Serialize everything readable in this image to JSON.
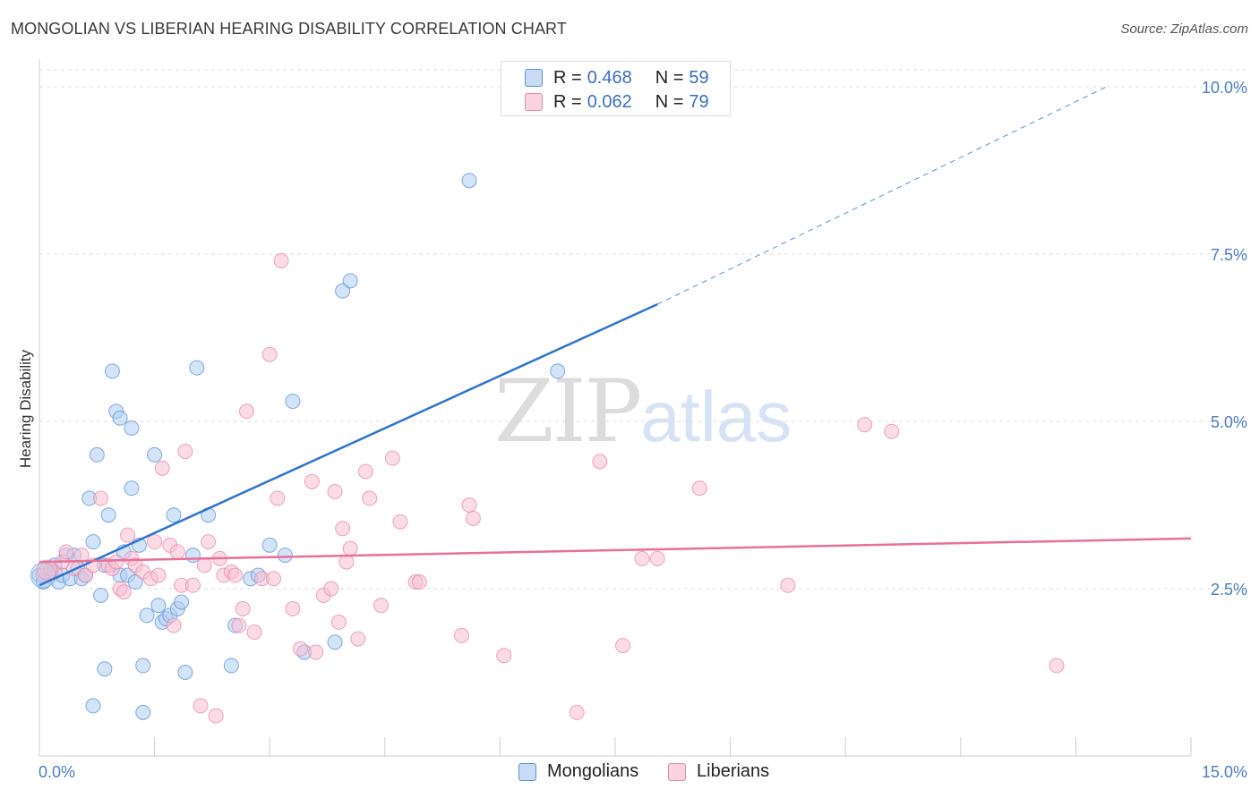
{
  "header": {
    "title": "MONGOLIAN VS LIBERIAN HEARING DISABILITY CORRELATION CHART",
    "source": "Source: ZipAtlas.com"
  },
  "watermark": {
    "zip": "ZIP",
    "atlas": "atlas"
  },
  "legend": {
    "r_label": "R =",
    "n_label": "N =",
    "series": [
      {
        "name": "Mongolians",
        "r": "0.468",
        "n": "59"
      },
      {
        "name": "Liberians",
        "r": "0.062",
        "n": "79"
      }
    ]
  },
  "colors": {
    "mongolian_fill": "#aecdf3",
    "mongolian_stroke": "#5b8fd6",
    "mongolian_line": "#2f73d0",
    "liberian_fill": "#f7bfd1",
    "liberian_stroke": "#e488a8",
    "liberian_line": "#e8709a",
    "tick_label": "#4a7cc7",
    "grid": "#dddddd"
  },
  "chart_data": {
    "type": "scatter",
    "title": "MONGOLIAN VS LIBERIAN HEARING DISABILITY CORRELATION CHART",
    "ylabel": "Hearing Disability",
    "xlabel": "",
    "xlim": [
      0,
      15
    ],
    "ylim": [
      0,
      10.5
    ],
    "x_tick_labels": [
      {
        "value": 0,
        "label": "0.0%"
      },
      {
        "value": 15,
        "label": "15.0%"
      }
    ],
    "y_tick_labels": [
      {
        "value": 2.5,
        "label": "2.5%"
      },
      {
        "value": 5.0,
        "label": "5.0%"
      },
      {
        "value": 7.5,
        "label": "7.5%"
      },
      {
        "value": 10.0,
        "label": "10.0%"
      }
    ],
    "grid": "horizontal dashed",
    "legend_position": "top-center",
    "series": [
      {
        "name": "Mongolians",
        "points": [
          [
            0.0,
            2.7
          ],
          [
            0.05,
            2.6
          ],
          [
            0.1,
            2.8
          ],
          [
            0.15,
            2.75
          ],
          [
            0.2,
            2.85
          ],
          [
            0.25,
            2.6
          ],
          [
            0.3,
            2.7
          ],
          [
            0.35,
            3.0
          ],
          [
            0.4,
            2.65
          ],
          [
            0.45,
            3.0
          ],
          [
            0.5,
            2.8
          ],
          [
            0.55,
            2.65
          ],
          [
            0.6,
            2.7
          ],
          [
            0.65,
            3.85
          ],
          [
            0.7,
            0.75
          ],
          [
            0.7,
            3.2
          ],
          [
            0.75,
            4.5
          ],
          [
            0.8,
            2.4
          ],
          [
            0.85,
            1.3
          ],
          [
            0.85,
            2.85
          ],
          [
            0.9,
            3.6
          ],
          [
            0.95,
            5.75
          ],
          [
            1.05,
            2.7
          ],
          [
            1.0,
            5.15
          ],
          [
            1.05,
            5.05
          ],
          [
            1.1,
            3.05
          ],
          [
            1.15,
            2.7
          ],
          [
            1.2,
            4.0
          ],
          [
            1.25,
            2.6
          ],
          [
            1.3,
            3.15
          ],
          [
            1.35,
            1.35
          ],
          [
            1.35,
            0.65
          ],
          [
            1.4,
            2.1
          ],
          [
            1.5,
            4.5
          ],
          [
            1.55,
            2.25
          ],
          [
            1.6,
            2.0
          ],
          [
            1.65,
            2.05
          ],
          [
            1.7,
            2.1
          ],
          [
            1.75,
            3.6
          ],
          [
            1.8,
            2.2
          ],
          [
            1.85,
            2.3
          ],
          [
            1.9,
            1.25
          ],
          [
            2.0,
            3.0
          ],
          [
            2.05,
            5.8
          ],
          [
            2.2,
            3.6
          ],
          [
            2.5,
            1.35
          ],
          [
            2.55,
            1.95
          ],
          [
            2.75,
            2.65
          ],
          [
            2.85,
            2.7
          ],
          [
            3.0,
            3.15
          ],
          [
            3.2,
            3.0
          ],
          [
            3.3,
            5.3
          ],
          [
            3.45,
            1.55
          ],
          [
            3.85,
            1.7
          ],
          [
            3.95,
            6.95
          ],
          [
            4.05,
            7.1
          ],
          [
            5.6,
            8.6
          ],
          [
            6.75,
            5.75
          ],
          [
            1.2,
            4.9
          ]
        ],
        "trend": {
          "x": [
            0.0,
            8.05
          ],
          "y": [
            2.55,
            6.75
          ],
          "dashed_extension": {
            "x": [
              8.05,
              13.9
            ],
            "y": [
              6.75,
              10.0
            ]
          }
        }
      },
      {
        "name": "Liberians",
        "points": [
          [
            0.05,
            2.7
          ],
          [
            0.15,
            2.8
          ],
          [
            0.2,
            2.75
          ],
          [
            0.3,
            2.9
          ],
          [
            0.35,
            3.05
          ],
          [
            0.45,
            2.8
          ],
          [
            0.55,
            3.0
          ],
          [
            0.6,
            2.7
          ],
          [
            0.7,
            2.85
          ],
          [
            0.8,
            3.85
          ],
          [
            0.9,
            2.85
          ],
          [
            0.95,
            2.8
          ],
          [
            1.0,
            2.9
          ],
          [
            1.05,
            2.5
          ],
          [
            1.1,
            2.45
          ],
          [
            1.15,
            3.3
          ],
          [
            1.2,
            2.95
          ],
          [
            1.25,
            2.85
          ],
          [
            1.35,
            2.75
          ],
          [
            1.45,
            2.65
          ],
          [
            1.5,
            3.2
          ],
          [
            1.55,
            2.7
          ],
          [
            1.6,
            4.3
          ],
          [
            1.7,
            3.15
          ],
          [
            1.75,
            1.95
          ],
          [
            1.8,
            3.05
          ],
          [
            1.85,
            2.55
          ],
          [
            1.9,
            4.55
          ],
          [
            2.0,
            2.55
          ],
          [
            2.1,
            0.75
          ],
          [
            2.15,
            2.85
          ],
          [
            2.2,
            3.2
          ],
          [
            2.3,
            0.6
          ],
          [
            2.35,
            2.95
          ],
          [
            2.4,
            2.7
          ],
          [
            2.5,
            2.75
          ],
          [
            2.55,
            2.7
          ],
          [
            2.6,
            1.95
          ],
          [
            2.65,
            2.2
          ],
          [
            2.7,
            5.15
          ],
          [
            2.8,
            1.85
          ],
          [
            2.9,
            2.65
          ],
          [
            3.0,
            6.0
          ],
          [
            3.05,
            2.65
          ],
          [
            3.1,
            3.85
          ],
          [
            3.15,
            7.4
          ],
          [
            3.3,
            2.2
          ],
          [
            3.4,
            1.6
          ],
          [
            3.55,
            4.1
          ],
          [
            3.6,
            1.55
          ],
          [
            3.7,
            2.4
          ],
          [
            3.8,
            2.5
          ],
          [
            3.85,
            3.95
          ],
          [
            3.9,
            2.0
          ],
          [
            3.95,
            3.4
          ],
          [
            4.0,
            2.9
          ],
          [
            4.05,
            3.1
          ],
          [
            4.15,
            1.75
          ],
          [
            4.25,
            4.25
          ],
          [
            4.3,
            3.85
          ],
          [
            4.45,
            2.25
          ],
          [
            4.6,
            4.45
          ],
          [
            4.7,
            3.5
          ],
          [
            4.9,
            2.6
          ],
          [
            5.5,
            1.8
          ],
          [
            5.6,
            3.75
          ],
          [
            5.65,
            3.55
          ],
          [
            6.05,
            1.5
          ],
          [
            7.0,
            0.65
          ],
          [
            7.3,
            4.4
          ],
          [
            7.6,
            1.65
          ],
          [
            7.85,
            2.95
          ],
          [
            8.05,
            2.95
          ],
          [
            8.6,
            4.0
          ],
          [
            9.75,
            2.55
          ],
          [
            10.75,
            4.95
          ],
          [
            11.1,
            4.85
          ],
          [
            13.25,
            1.35
          ],
          [
            4.95,
            2.6
          ]
        ],
        "trend": {
          "x": [
            0.0,
            15.0
          ],
          "y": [
            2.9,
            3.25
          ]
        }
      }
    ]
  }
}
